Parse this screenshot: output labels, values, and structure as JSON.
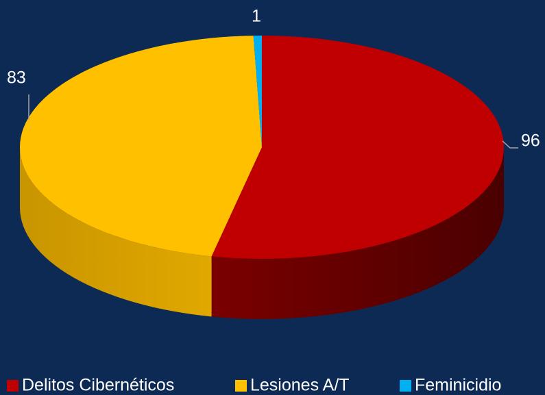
{
  "chart_data": {
    "type": "pie3d",
    "categories": [
      "Delitos Cibernéticos",
      "Lesiones A/T",
      "Feminicidio"
    ],
    "values": [
      96,
      83,
      1
    ],
    "colors": [
      "#c00000",
      "#ffc000",
      "#00b0f0"
    ],
    "legend": "bottom"
  }
}
